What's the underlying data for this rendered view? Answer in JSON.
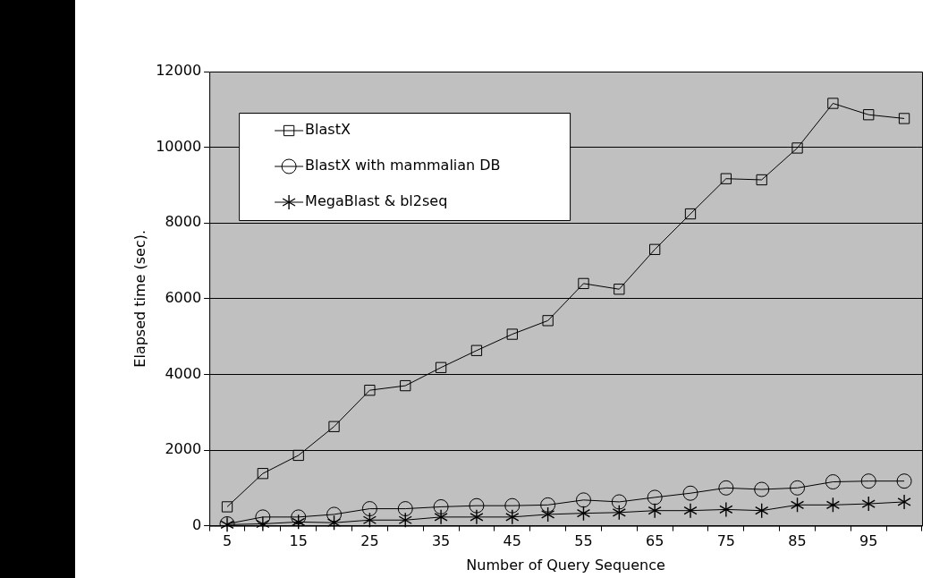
{
  "chart_data": {
    "type": "line",
    "xlabel": "Number of Query Sequence",
    "ylabel": "Elapsed time (sec).",
    "categories": [
      "5",
      null,
      "15",
      null,
      "25",
      null,
      "35",
      null,
      "45",
      null,
      "55",
      null,
      "65",
      null,
      "75",
      null,
      "85",
      null,
      "95",
      null
    ],
    "series": [
      {
        "name": "BlastX",
        "color": "#000000",
        "marker": "square",
        "values": [
          500,
          1380,
          1860,
          2620,
          3580,
          3700,
          4180,
          4630,
          5060,
          5420,
          6400,
          6250,
          7300,
          8240,
          9170,
          9140,
          9980,
          11160,
          10860,
          10760
        ]
      },
      {
        "name": "BlastX with mammalian DB",
        "color": "#000000",
        "marker": "circle",
        "values": [
          50,
          230,
          230,
          300,
          450,
          450,
          500,
          530,
          530,
          550,
          680,
          630,
          750,
          860,
          1000,
          960,
          1000,
          1160,
          1180,
          1180
        ]
      },
      {
        "name": "MegaBlast & bl2seq",
        "color": "#000000",
        "marker": "cross",
        "values": [
          30,
          50,
          100,
          80,
          150,
          150,
          230,
          230,
          230,
          300,
          330,
          350,
          400,
          400,
          430,
          400,
          550,
          550,
          580,
          630
        ]
      }
    ],
    "ylim": [
      0,
      12000
    ],
    "yticks": [
      0,
      2000,
      4000,
      6000,
      8000,
      10000,
      12000
    ],
    "grid": "y",
    "legend": "top left",
    "line_style": "solid"
  }
}
